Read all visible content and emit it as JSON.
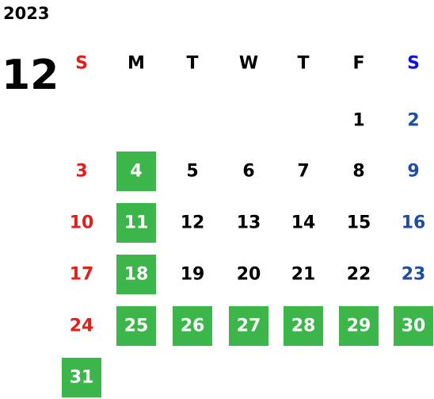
{
  "calendar": {
    "year": "2023",
    "month": "12",
    "weekdays": [
      "S",
      "M",
      "T",
      "W",
      "T",
      "F",
      "S"
    ],
    "weeks": [
      [
        null,
        null,
        null,
        null,
        null,
        {
          "day": 1
        },
        {
          "day": 2
        }
      ],
      [
        {
          "day": 3
        },
        {
          "day": 4,
          "highlighted": true
        },
        {
          "day": 5
        },
        {
          "day": 6
        },
        {
          "day": 7
        },
        {
          "day": 8
        },
        {
          "day": 9
        }
      ],
      [
        {
          "day": 10
        },
        {
          "day": 11,
          "highlighted": true
        },
        {
          "day": 12
        },
        {
          "day": 13
        },
        {
          "day": 14
        },
        {
          "day": 15
        },
        {
          "day": 16
        }
      ],
      [
        {
          "day": 17
        },
        {
          "day": 18,
          "highlighted": true
        },
        {
          "day": 19
        },
        {
          "day": 20
        },
        {
          "day": 21
        },
        {
          "day": 22
        },
        {
          "day": 23
        }
      ],
      [
        {
          "day": 24
        },
        {
          "day": 25,
          "highlighted": true
        },
        {
          "day": 26,
          "highlighted": true
        },
        {
          "day": 27,
          "highlighted": true
        },
        {
          "day": 28,
          "highlighted": true
        },
        {
          "day": 29,
          "highlighted": true
        },
        {
          "day": 30,
          "highlighted": true
        }
      ],
      [
        {
          "day": 31,
          "highlighted": true
        },
        null,
        null,
        null,
        null,
        null,
        null
      ]
    ]
  }
}
